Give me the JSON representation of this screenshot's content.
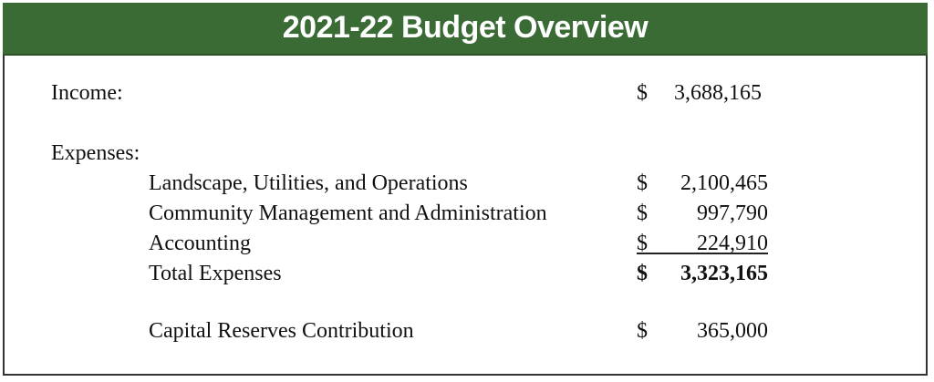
{
  "title": "2021-22 Budget Overview",
  "income": {
    "label": "Income:",
    "currency": "$",
    "amount": "3,688,165"
  },
  "expenses": {
    "label": "Expenses:",
    "items": [
      {
        "label": "Landscape, Utilities, and Operations",
        "currency": "$",
        "amount": "2,100,465"
      },
      {
        "label": "Community Management and Administration",
        "currency": "$",
        "amount": "997,790"
      },
      {
        "label": "Accounting",
        "currency": "$",
        "amount": "224,910"
      }
    ],
    "total": {
      "label": "Total Expenses",
      "currency": "$",
      "amount": "3,323,165"
    }
  },
  "capital": {
    "label": "Capital Reserves Contribution",
    "currency": "$",
    "amount": "365,000"
  },
  "colors": {
    "header": "#3a6b35",
    "title_text": "#ffffff"
  }
}
